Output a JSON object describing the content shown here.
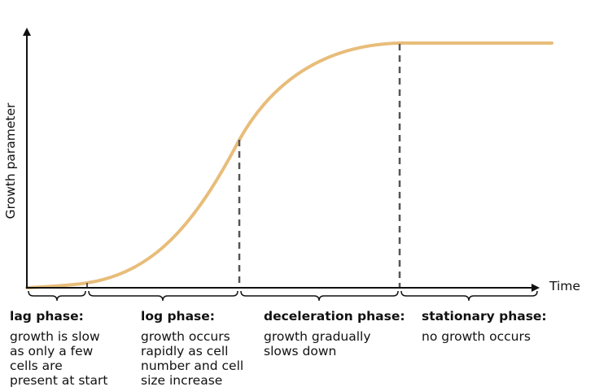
{
  "axes": {
    "x_label": "Time",
    "y_label": "Growth parameter"
  },
  "colors": {
    "curve": "#E8BD7A",
    "axis": "#111111",
    "divider": "#555555"
  },
  "phases": [
    {
      "title": "lag phase:",
      "description": [
        "growth is slow",
        "as only a few",
        "cells are",
        "present at start"
      ]
    },
    {
      "title": "log phase:",
      "description": [
        "growth occurs",
        "rapidly as cell",
        "number and cell",
        "size increase"
      ]
    },
    {
      "title": "deceleration phase:",
      "description": [
        "growth gradually",
        "slows down"
      ]
    },
    {
      "title": "stationary phase:",
      "description": [
        "no growth occurs"
      ]
    }
  ]
}
